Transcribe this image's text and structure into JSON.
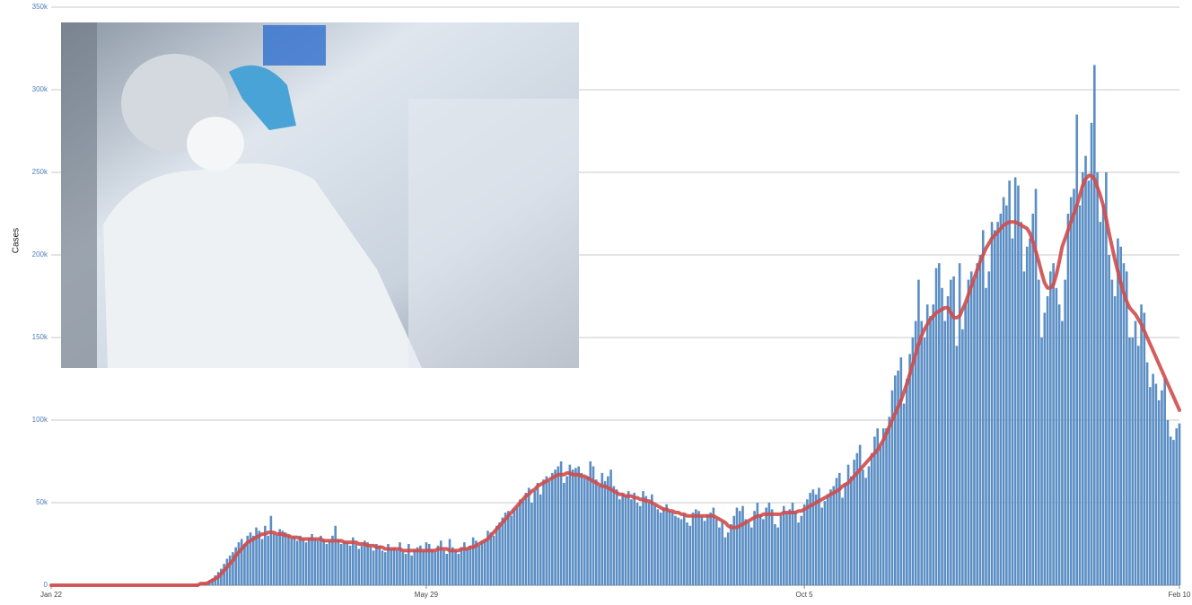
{
  "chart_data": {
    "type": "bar",
    "y_label": "Cases",
    "categories": [
      "Jan 22",
      null,
      null,
      null,
      null,
      null,
      null,
      null,
      null,
      null,
      null,
      null,
      null,
      null,
      null,
      null,
      null,
      null,
      null,
      null,
      null,
      null,
      null,
      null,
      null,
      null,
      null,
      null,
      null,
      null,
      null,
      null,
      null,
      null,
      null,
      null,
      null,
      null,
      null,
      null,
      null,
      null,
      null,
      null,
      null,
      null,
      null,
      null,
      null,
      null,
      null,
      null,
      null,
      null,
      null,
      null,
      null,
      null,
      null,
      null,
      null,
      null,
      null,
      null,
      null,
      null,
      null,
      null,
      null,
      null,
      null,
      null,
      null,
      null,
      null,
      null,
      null,
      null,
      null,
      null,
      null,
      null,
      null,
      null,
      null,
      null,
      null,
      null,
      null,
      null,
      null,
      null,
      null,
      null,
      null,
      null,
      null,
      null,
      null,
      null,
      null,
      null,
      null,
      null,
      null,
      null,
      null,
      null,
      null,
      null,
      null,
      null,
      null,
      null,
      null,
      null,
      null,
      null,
      null,
      null,
      null,
      null,
      null,
      null,
      null,
      null,
      null,
      null,
      "May 29",
      null,
      null,
      null,
      null,
      null,
      null,
      null,
      null,
      null,
      null,
      null,
      null,
      null,
      null,
      null,
      null,
      null,
      null,
      null,
      null,
      null,
      null,
      null,
      null,
      null,
      null,
      null,
      null,
      null,
      null,
      null,
      null,
      null,
      null,
      null,
      null,
      null,
      null,
      null,
      null,
      null,
      null,
      null,
      null,
      null,
      null,
      null,
      null,
      null,
      null,
      null,
      null,
      null,
      null,
      null,
      null,
      null,
      null,
      null,
      null,
      null,
      null,
      null,
      null,
      null,
      null,
      null,
      null,
      null,
      null,
      null,
      null,
      null,
      null,
      null,
      null,
      null,
      null,
      null,
      null,
      null,
      null,
      null,
      null,
      null,
      null,
      null,
      null,
      null,
      null,
      null,
      null,
      null,
      null,
      null,
      null,
      null,
      null,
      null,
      null,
      null,
      null,
      null,
      null,
      null,
      null,
      null,
      null,
      null,
      null,
      null,
      null,
      null,
      null,
      null,
      null,
      null,
      null,
      null,
      null,
      null,
      null,
      null,
      null,
      null,
      null,
      null,
      null,
      "Oct 5",
      null,
      null,
      null,
      null,
      null,
      null,
      null,
      null,
      null,
      null,
      null,
      null,
      null,
      null,
      null,
      null,
      null,
      null,
      null,
      null,
      null,
      null,
      null,
      null,
      null,
      null,
      null,
      null,
      null,
      null,
      null,
      null,
      null,
      null,
      null,
      null,
      null,
      null,
      null,
      null,
      null,
      null,
      null,
      null,
      null,
      null,
      null,
      null,
      null,
      null,
      null,
      null,
      null,
      null,
      null,
      null,
      null,
      null,
      null,
      null,
      null,
      null,
      null,
      null,
      null,
      null,
      null,
      null,
      null,
      null,
      null,
      null,
      null,
      null,
      null,
      null,
      null,
      null,
      null,
      null,
      null,
      null,
      null,
      null,
      null,
      null,
      null,
      null,
      null,
      null,
      null,
      null,
      null,
      null,
      null,
      null,
      null,
      null,
      null,
      null,
      null,
      null,
      null,
      null,
      null,
      null,
      null,
      null,
      null,
      null,
      null,
      null,
      null,
      null,
      null,
      null,
      null,
      null,
      null,
      null,
      null,
      null,
      null,
      null,
      null,
      null,
      null,
      "Feb 10"
    ],
    "series": [
      {
        "type": "bar",
        "color": "#5b8ec4",
        "values": [
          0,
          0,
          0,
          0,
          0,
          0,
          0,
          0,
          0,
          0,
          0,
          0,
          0,
          0,
          0,
          0,
          0,
          0,
          0,
          0,
          0,
          0,
          0,
          0,
          0,
          0,
          0,
          0,
          0,
          0,
          0,
          0,
          0,
          0,
          0,
          0,
          0,
          0,
          0,
          0,
          0,
          0,
          0,
          0,
          0,
          100,
          200,
          300,
          400,
          500,
          800,
          1000,
          1500,
          2000,
          3000,
          4000,
          6000,
          8000,
          10000,
          13000,
          16000,
          18000,
          20000,
          23000,
          26000,
          28000,
          25000,
          30000,
          32000,
          30000,
          35000,
          33000,
          28000,
          36000,
          30000,
          42000,
          31000,
          30000,
          34000,
          33000,
          32000,
          30000,
          28000,
          29000,
          27000,
          30000,
          28000,
          26000,
          29000,
          31000,
          28000,
          27000,
          30000,
          28000,
          25000,
          27000,
          30000,
          36000,
          28000,
          25000,
          27000,
          26000,
          24000,
          29000,
          25000,
          22000,
          24000,
          27000,
          26000,
          23000,
          21000,
          25000,
          24000,
          21000,
          20000,
          25000,
          22000,
          23000,
          21000,
          26000,
          20000,
          19000,
          25000,
          18000,
          22000,
          23000,
          24000,
          21000,
          26000,
          25000,
          22000,
          20000,
          24000,
          27000,
          21000,
          19000,
          28000,
          23000,
          21000,
          19000,
          23000,
          26000,
          22000,
          24000,
          29000,
          27000,
          24000,
          27000,
          28000,
          33000,
          32000,
          30000,
          36000,
          38000,
          41000,
          44000,
          45000,
          42000,
          46000,
          47000,
          52000,
          51000,
          56000,
          59000,
          50000,
          57000,
          62000,
          55000,
          64000,
          66000,
          63000,
          68000,
          70000,
          72000,
          75000,
          62000,
          66000,
          73000,
          70000,
          71000,
          72000,
          68000,
          65000,
          66000,
          75000,
          72000,
          64000,
          60000,
          68000,
          63000,
          66000,
          70000,
          60000,
          58000,
          52000,
          55000,
          54000,
          57000,
          52000,
          56000,
          50000,
          48000,
          57000,
          54000,
          50000,
          55000,
          48000,
          46000,
          44000,
          47000,
          49000,
          45000,
          44000,
          42000,
          41000,
          40000,
          43000,
          38000,
          36000,
          44000,
          46000,
          45000,
          42000,
          39000,
          43000,
          44000,
          47000,
          40000,
          35000,
          38000,
          29000,
          32000,
          37000,
          42000,
          47000,
          45000,
          48000,
          40000,
          38000,
          35000,
          45000,
          50000,
          43000,
          40000,
          47000,
          50000,
          46000,
          37000,
          35000,
          42000,
          48000,
          44000,
          46000,
          50000,
          45000,
          38000,
          42000,
          49000,
          52000,
          56000,
          58000,
          55000,
          59000,
          47000,
          51000,
          55000,
          58000,
          60000,
          65000,
          68000,
          53000,
          62000,
          73000,
          66000,
          76000,
          80000,
          85000,
          70000,
          65000,
          72000,
          80000,
          90000,
          95000,
          84000,
          95000,
          95000,
          102000,
          118000,
          127000,
          130000,
          138000,
          110000,
          125000,
          140000,
          150000,
          160000,
          185000,
          160000,
          150000,
          170000,
          163000,
          170000,
          192000,
          195000,
          180000,
          160000,
          175000,
          185000,
          187000,
          145000,
          195000,
          155000,
          170000,
          185000,
          190000,
          185000,
          195000,
          200000,
          215000,
          180000,
          190000,
          220000,
          215000,
          220000,
          225000,
          235000,
          230000,
          245000,
          210000,
          247000,
          242000,
          220000,
          190000,
          205000,
          210000,
          225000,
          240000,
          185000,
          150000,
          165000,
          175000,
          190000,
          195000,
          180000,
          170000,
          160000,
          185000,
          225000,
          235000,
          240000,
          285000,
          230000,
          250000,
          260000,
          245000,
          280000,
          315000,
          250000,
          220000,
          230000,
          250000,
          200000,
          185000,
          175000,
          210000,
          205000,
          195000,
          190000,
          150000,
          150000,
          160000,
          145000,
          170000,
          165000,
          135000,
          120000,
          128000,
          122000,
          112000,
          118000,
          125000,
          100000,
          90000,
          88000,
          95000,
          98000
        ]
      },
      {
        "type": "line",
        "color": "#cf4b4b",
        "values": [
          0,
          0,
          0,
          0,
          0,
          0,
          0,
          0,
          0,
          0,
          0,
          0,
          0,
          0,
          0,
          0,
          0,
          0,
          0,
          0,
          0,
          0,
          0,
          0,
          0,
          0,
          0,
          0,
          0,
          0,
          0,
          0,
          0,
          0,
          0,
          0,
          0,
          0,
          0,
          0,
          0,
          0,
          0,
          0,
          0,
          0,
          0,
          0,
          0,
          0,
          0,
          1000,
          1000,
          1000,
          2000,
          3000,
          4000,
          5000,
          7000,
          9000,
          11000,
          13000,
          15000,
          18000,
          20000,
          22000,
          24000,
          26000,
          27000,
          28000,
          29000,
          30000,
          31000,
          31000,
          32000,
          32000,
          32000,
          31000,
          31000,
          31000,
          30000,
          30000,
          29000,
          29000,
          29000,
          28000,
          28000,
          28000,
          28000,
          28000,
          28000,
          28000,
          28000,
          27000,
          27000,
          27000,
          27000,
          27000,
          27000,
          27000,
          26000,
          26000,
          26000,
          26000,
          26000,
          25000,
          25000,
          25000,
          24000,
          24000,
          24000,
          23000,
          23000,
          23000,
          22000,
          22000,
          22000,
          22000,
          22000,
          22000,
          21000,
          21000,
          21000,
          21000,
          21000,
          21000,
          21000,
          21000,
          21000,
          21000,
          21000,
          21000,
          22000,
          22000,
          22000,
          22000,
          21000,
          21000,
          21000,
          21000,
          22000,
          22000,
          22000,
          23000,
          23000,
          24000,
          25000,
          26000,
          27000,
          28000,
          30000,
          32000,
          34000,
          36000,
          38000,
          40000,
          42000,
          44000,
          46000,
          48000,
          50000,
          52000,
          54000,
          55000,
          57000,
          58000,
          60000,
          61000,
          62000,
          63000,
          64000,
          65000,
          66000,
          67000,
          67000,
          67000,
          68000,
          68000,
          67000,
          67000,
          67000,
          66000,
          66000,
          65000,
          64000,
          63000,
          62000,
          61000,
          60000,
          60000,
          59000,
          58000,
          57000,
          56000,
          55000,
          55000,
          54000,
          54000,
          54000,
          53000,
          53000,
          52000,
          52000,
          51000,
          51000,
          50000,
          49000,
          48000,
          47000,
          46000,
          46000,
          45000,
          45000,
          44000,
          44000,
          43000,
          43000,
          42000,
          42000,
          42000,
          42000,
          42000,
          42000,
          42000,
          42000,
          42000,
          42000,
          41000,
          40000,
          39000,
          38000,
          36000,
          35000,
          35000,
          35000,
          36000,
          37000,
          38000,
          39000,
          40000,
          41000,
          42000,
          42000,
          43000,
          43000,
          43000,
          43000,
          43000,
          43000,
          43000,
          44000,
          44000,
          44000,
          44000,
          44000,
          45000,
          45000,
          46000,
          47000,
          48000,
          49000,
          50000,
          51000,
          52000,
          53000,
          54000,
          55000,
          56000,
          57000,
          58000,
          60000,
          61000,
          62000,
          64000,
          66000,
          68000,
          70000,
          72000,
          74000,
          76000,
          78000,
          80000,
          82000,
          85000,
          88000,
          92000,
          96000,
          100000,
          104000,
          108000,
          112000,
          117000,
          122000,
          128000,
          134000,
          140000,
          146000,
          151000,
          155000,
          158000,
          161000,
          163000,
          165000,
          166000,
          167000,
          168000,
          168000,
          165000,
          162000,
          162000,
          163000,
          167000,
          171000,
          176000,
          181000,
          186000,
          191000,
          196000,
          200000,
          204000,
          207000,
          210000,
          212000,
          214000,
          216000,
          218000,
          219000,
          220000,
          220000,
          220000,
          219000,
          218000,
          217000,
          216000,
          213000,
          208000,
          202000,
          196000,
          189000,
          183000,
          180000,
          180000,
          182000,
          188000,
          196000,
          205000,
          210000,
          215000,
          220000,
          225000,
          230000,
          236000,
          242000,
          246000,
          248000,
          248000,
          246000,
          241000,
          236000,
          230000,
          222000,
          213000,
          205000,
          197000,
          190000,
          183000,
          177000,
          172000,
          168000,
          166000,
          164000,
          161000,
          158000,
          154000,
          150000,
          146000,
          142000,
          138000,
          134000,
          130000,
          126000,
          122000,
          118000,
          114000,
          110000,
          106000
        ]
      }
    ],
    "ylim": [
      0,
      350000
    ],
    "yticks": [
      0,
      {
        "value": 50000,
        "label": "50k"
      },
      {
        "value": 100000,
        "label": "100k"
      },
      {
        "value": 150000,
        "label": "150k"
      },
      {
        "value": 200000,
        "label": "200k"
      },
      {
        "value": 250000,
        "label": "250k"
      },
      {
        "value": 300000,
        "label": "300k"
      },
      {
        "value": 350000,
        "label": "350k"
      }
    ],
    "grid": true
  }
}
